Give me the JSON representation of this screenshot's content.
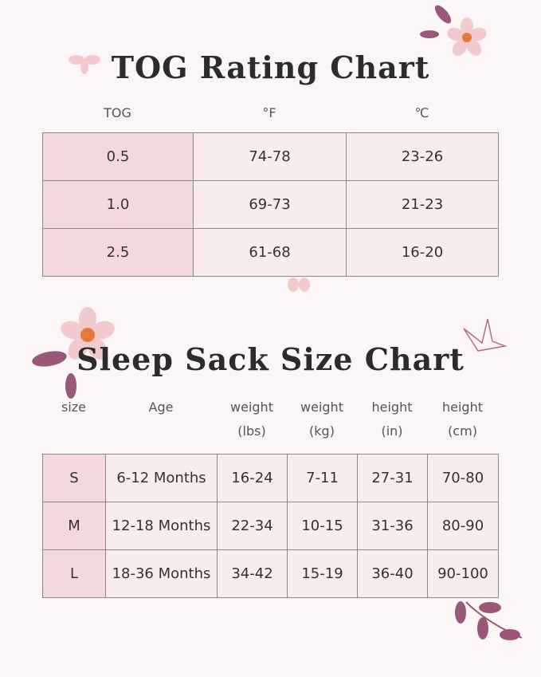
{
  "tog_chart": {
    "title": "TOG Rating Chart",
    "headers": [
      "TOG",
      "°F",
      "℃"
    ],
    "rows": [
      [
        "0.5",
        "74-78",
        "23-26"
      ],
      [
        "1.0",
        "69-73",
        "21-23"
      ],
      [
        "2.5",
        "61-68",
        "16-20"
      ]
    ]
  },
  "size_chart": {
    "title": "Sleep Sack Size Chart",
    "headers": [
      [
        "size"
      ],
      [
        "Age"
      ],
      [
        "weight",
        "(lbs)"
      ],
      [
        "weight",
        "(kg)"
      ],
      [
        "height",
        "(in)"
      ],
      [
        "height",
        "(cm)"
      ]
    ],
    "rows": [
      [
        "S",
        "6-12 Months",
        "16-24",
        "7-11",
        "27-31",
        "70-80"
      ],
      [
        "M",
        "12-18 Months",
        "22-34",
        "10-15",
        "31-36",
        "80-90"
      ],
      [
        "L",
        "18-36 Months",
        "34-42",
        "15-19",
        "36-40",
        "90-100"
      ]
    ]
  }
}
